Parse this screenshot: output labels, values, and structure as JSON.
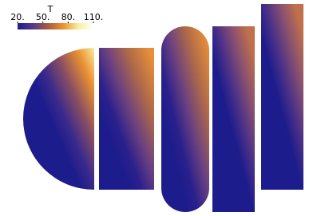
{
  "chart_data": {
    "type": "contour",
    "colorbar": {
      "title": "T",
      "clim": [
        20,
        110
      ],
      "cticks": [
        {
          "value": 20,
          "label": "20."
        },
        {
          "value": 50,
          "label": "50."
        },
        {
          "value": 80,
          "label": "80."
        },
        {
          "value": 110,
          "label": "110."
        }
      ],
      "colormap": [
        "#1c1c8c",
        "#56388c",
        "#a55e3c",
        "#ea9132",
        "#f7ef9e",
        "#ffffff"
      ]
    }
  }
}
